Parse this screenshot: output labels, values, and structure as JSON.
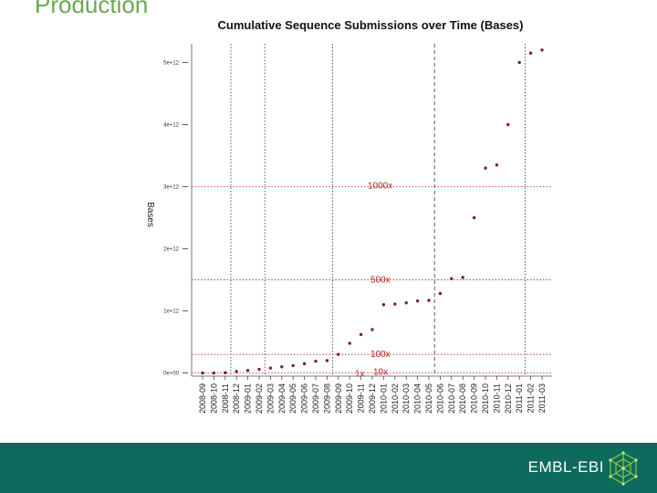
{
  "slide": {
    "title": "Production"
  },
  "footer": {
    "logo_text": "EMBL-EBI"
  },
  "colors": {
    "footer_bg": "#0c6b5c",
    "points": "#7a1f2b",
    "annotations": "#b22222",
    "title": "#6aa84f"
  },
  "chart_data": {
    "type": "scatter",
    "title": "Cumulative Sequence Submissions over Time (Bases)",
    "xlabel": "",
    "ylabel": "Bases",
    "categories": [
      "2008-09",
      "2008-10",
      "2008-11",
      "2008-12",
      "2009-01",
      "2009-02",
      "2009-03",
      "2009-04",
      "2009-05",
      "2009-06",
      "2009-07",
      "2009-08",
      "2009-09",
      "2009-10",
      "2009-11",
      "2009-12",
      "2010-01",
      "2010-02",
      "2010-03",
      "2010-04",
      "2010-05",
      "2010-06",
      "2010-07",
      "2010-08",
      "2010-09",
      "2010-10",
      "2010-11",
      "2010-12",
      "2011-01",
      "2011-02",
      "2011-03"
    ],
    "values": [
      0.0,
      0.0,
      0.005,
      0.025,
      0.04,
      0.06,
      0.08,
      0.1,
      0.12,
      0.15,
      0.19,
      0.2,
      0.3,
      0.48,
      0.62,
      0.7,
      1.1,
      1.11,
      1.13,
      1.16,
      1.17,
      1.28,
      1.52,
      1.54,
      2.5,
      3.3,
      3.35,
      4.0,
      5.0,
      5.15,
      5.2
    ],
    "y_ticks": [
      {
        "value": 0,
        "label": "0e+00"
      },
      {
        "value": 1,
        "label": "1e+12"
      },
      {
        "value": 2,
        "label": "2e+12"
      },
      {
        "value": 3,
        "label": "3e+12"
      },
      {
        "value": 4,
        "label": "4e+12"
      },
      {
        "value": 5,
        "label": "5e+12"
      }
    ],
    "ylim": [
      -0.05,
      5.3
    ],
    "vertical_lines": [
      {
        "category": "2008-11",
        "style": "dotted"
      },
      {
        "category": "2009-02",
        "style": "dotted"
      },
      {
        "category": "2009-08",
        "style": "dotted"
      },
      {
        "category": "2010-05",
        "style": "dashed"
      },
      {
        "category": "2011-01",
        "style": "dotted"
      }
    ],
    "reference_lines": [
      {
        "value": 3.0,
        "label": "1000x"
      },
      {
        "value": 1.5,
        "label": "500x"
      },
      {
        "value": 0.3,
        "label": "100x"
      },
      {
        "value": 0.0,
        "label": "10x"
      },
      {
        "value": 0.0,
        "label": "1x"
      }
    ]
  }
}
